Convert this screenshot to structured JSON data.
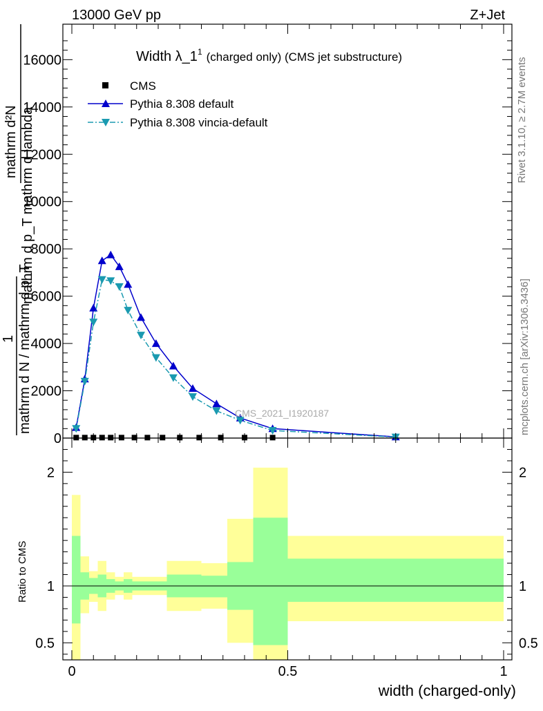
{
  "header": {
    "left": "13000 GeV pp",
    "right": "Z+Jet"
  },
  "side_labels": {
    "rivet": "Rivet 3.1.10, ≥ 2.7M events",
    "mcplots": "mcplots.cern.ch [arXiv:1306.3436]"
  },
  "watermark": "CMS_2021_I1920187",
  "chart_data": [
    {
      "type": "line",
      "title_main": "Width λ_1",
      "title_sup": "1",
      "title_rest": "(charged only) (CMS jet substructure)",
      "ylabel_numerator": "1",
      "ylabel_denominator": "mathrm d N / mathrm d p_T",
      "ylabel_front_num": "mathrm d²N",
      "ylabel_front_den": "mathrm d p_T mathrm d lambda",
      "xlim": [
        0,
        1
      ],
      "ylim": [
        0,
        17500
      ],
      "yticks": [
        0,
        2000,
        4000,
        6000,
        8000,
        10000,
        12000,
        14000,
        16000
      ],
      "ytick_labels": [
        "0",
        "2000",
        "4000",
        "6000",
        "8000",
        "10000",
        "12000",
        "14000",
        "16000"
      ],
      "legend_position": "top-left",
      "series": [
        {
          "name": "CMS",
          "marker": "square",
          "color": "#000000",
          "x": [
            0.01,
            0.03,
            0.05,
            0.07,
            0.09,
            0.115,
            0.145,
            0.175,
            0.21,
            0.25,
            0.295,
            0.345,
            0.4,
            0.465
          ],
          "values": [
            20,
            20,
            20,
            20,
            20,
            20,
            20,
            20,
            20,
            20,
            20,
            20,
            20,
            20
          ]
        },
        {
          "name": "Pythia 8.308 default",
          "marker": "triangle-up",
          "color": "#0000cc",
          "dash": "solid",
          "x": [
            0.01,
            0.03,
            0.05,
            0.07,
            0.09,
            0.11,
            0.13,
            0.16,
            0.195,
            0.235,
            0.28,
            0.335,
            0.39,
            0.465,
            0.75
          ],
          "values": [
            450,
            2500,
            5500,
            7500,
            7750,
            7250,
            6500,
            5100,
            4000,
            3050,
            2100,
            1450,
            850,
            400,
            50
          ]
        },
        {
          "name": "Pythia 8.308 vincia-default",
          "marker": "triangle-down",
          "color": "#1a9ab0",
          "dash": "dash-dot",
          "x": [
            0.01,
            0.03,
            0.05,
            0.07,
            0.09,
            0.11,
            0.13,
            0.16,
            0.195,
            0.235,
            0.28,
            0.335,
            0.39,
            0.465,
            0.75
          ],
          "values": [
            400,
            2400,
            4900,
            6700,
            6650,
            6400,
            5400,
            4350,
            3400,
            2550,
            1750,
            1150,
            750,
            320,
            40
          ]
        }
      ]
    },
    {
      "type": "area",
      "ylabel": "Ratio to CMS",
      "xlabel": "width (charged-only)",
      "xlim": [
        0,
        1
      ],
      "ylim": [
        0.35,
        2.3
      ],
      "yticks": [
        0.5,
        1,
        2
      ],
      "ytick_labels": [
        "0.5",
        "1",
        "2"
      ],
      "xticks": [
        0,
        0.5,
        1
      ],
      "xtick_labels": [
        "0",
        "0.5",
        "1"
      ],
      "bands": {
        "green_color": "#99ff99",
        "yellow_color": "#ffff99",
        "bins": [
          {
            "x0": 0.0,
            "x1": 0.02,
            "g_lo": 0.67,
            "g_hi": 1.44,
            "y_lo": 0.2,
            "y_hi": 1.8
          },
          {
            "x0": 0.02,
            "x1": 0.04,
            "g_lo": 0.88,
            "g_hi": 1.12,
            "y_lo": 0.76,
            "y_hi": 1.26
          },
          {
            "x0": 0.04,
            "x1": 0.06,
            "g_lo": 0.93,
            "g_hi": 1.07,
            "y_lo": 0.86,
            "y_hi": 1.13
          },
          {
            "x0": 0.06,
            "x1": 0.08,
            "g_lo": 0.9,
            "g_hi": 1.1,
            "y_lo": 0.78,
            "y_hi": 1.22
          },
          {
            "x0": 0.08,
            "x1": 0.1,
            "g_lo": 0.94,
            "g_hi": 1.06,
            "y_lo": 0.88,
            "y_hi": 1.12
          },
          {
            "x0": 0.1,
            "x1": 0.12,
            "g_lo": 0.96,
            "g_hi": 1.04,
            "y_lo": 0.92,
            "y_hi": 1.08
          },
          {
            "x0": 0.12,
            "x1": 0.14,
            "g_lo": 0.94,
            "g_hi": 1.06,
            "y_lo": 0.88,
            "y_hi": 1.12
          },
          {
            "x0": 0.14,
            "x1": 0.16,
            "g_lo": 0.96,
            "g_hi": 1.04,
            "y_lo": 0.92,
            "y_hi": 1.08
          },
          {
            "x0": 0.16,
            "x1": 0.2,
            "g_lo": 0.96,
            "g_hi": 1.04,
            "y_lo": 0.92,
            "y_hi": 1.08
          },
          {
            "x0": 0.2,
            "x1": 0.22,
            "g_lo": 0.96,
            "g_hi": 1.04,
            "y_lo": 0.92,
            "y_hi": 1.08
          },
          {
            "x0": 0.22,
            "x1": 0.26,
            "g_lo": 0.9,
            "g_hi": 1.1,
            "y_lo": 0.78,
            "y_hi": 1.22
          },
          {
            "x0": 0.26,
            "x1": 0.3,
            "g_lo": 0.9,
            "g_hi": 1.1,
            "y_lo": 0.78,
            "y_hi": 1.22
          },
          {
            "x0": 0.3,
            "x1": 0.36,
            "g_lo": 0.9,
            "g_hi": 1.09,
            "y_lo": 0.8,
            "y_hi": 1.2
          },
          {
            "x0": 0.36,
            "x1": 0.42,
            "g_lo": 0.79,
            "g_hi": 1.21,
            "y_lo": 0.5,
            "y_hi": 1.59
          },
          {
            "x0": 0.42,
            "x1": 0.5,
            "g_lo": 0.48,
            "g_hi": 1.6,
            "y_lo": 0.0,
            "y_hi": 2.04
          },
          {
            "x0": 0.5,
            "x1": 1.0,
            "g_lo": 0.86,
            "g_hi": 1.24,
            "y_lo": 0.69,
            "y_hi": 1.44
          }
        ]
      }
    }
  ]
}
